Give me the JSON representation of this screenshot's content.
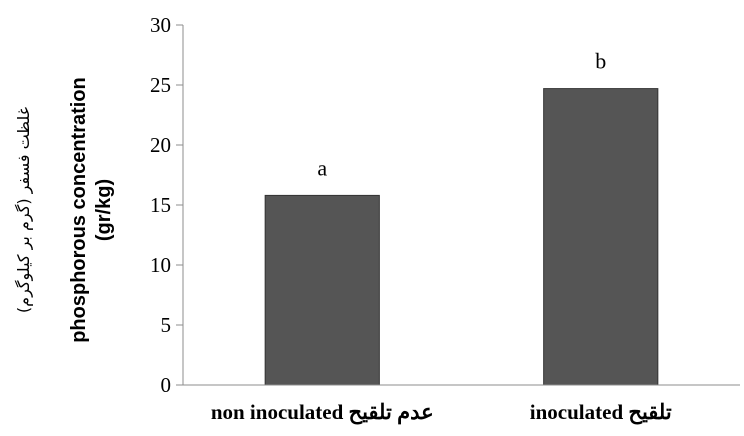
{
  "chart_data": {
    "type": "bar",
    "categories": [
      "non inoculated عدم تلقیح",
      "inoculated تلقیح"
    ],
    "values": [
      15.8,
      24.7
    ],
    "data_labels": [
      "a",
      "b"
    ],
    "title": "",
    "xlabel": "",
    "ylabel_persian": "غلظت فسفر (گرم بر کیلوگرم)",
    "ylabel_line1": "phosphorous concentration",
    "ylabel_line2": "(gr/kg)",
    "ylim": [
      0,
      30
    ],
    "yticks": [
      0,
      5,
      10,
      15,
      20,
      25,
      30
    ],
    "grid": false,
    "bar_color": "#555555"
  }
}
